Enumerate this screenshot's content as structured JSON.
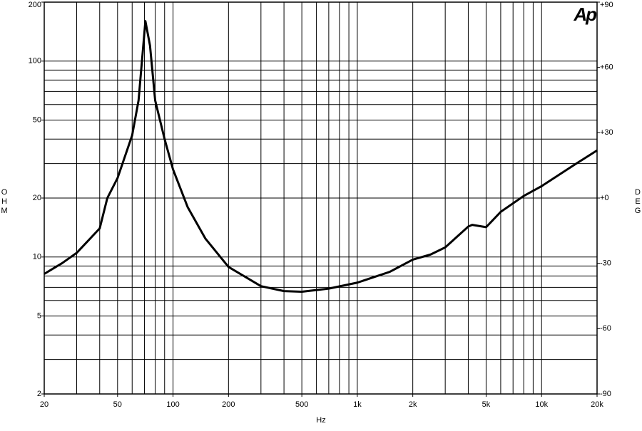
{
  "chart_data": {
    "type": "line",
    "logo": "Ap",
    "xlabel": "Hz",
    "ylabel": "OHM",
    "y2label": "DEG",
    "x": [
      20,
      25,
      30,
      40,
      44,
      50,
      60,
      65,
      70.8,
      75,
      80,
      90,
      100,
      120,
      150,
      200,
      300,
      400,
      500,
      700,
      1000,
      1500,
      2000,
      2500,
      3000,
      4000,
      4200,
      5000,
      6000,
      8000,
      10000,
      15000,
      20000
    ],
    "values": [
      8.2,
      9.3,
      10.5,
      14,
      20,
      25.3,
      41.8,
      63,
      160,
      120,
      63,
      40,
      28,
      18,
      12.4,
      8.9,
      7.1,
      6.7,
      6.65,
      6.9,
      7.4,
      8.4,
      9.7,
      10.3,
      11.2,
      14.3,
      14.6,
      14.2,
      17,
      20.5,
      23,
      29.5,
      35
    ],
    "color": "#000000",
    "xscale": "log",
    "yscale": "log",
    "xlim": [
      20,
      20000
    ],
    "ylim": [
      2,
      200
    ],
    "y2lim": [
      -90,
      90
    ],
    "xticks": [
      20,
      50,
      100,
      200,
      500,
      {
        "value": 1000,
        "label": "1k"
      },
      {
        "value": 2000,
        "label": "2k"
      },
      {
        "value": 5000,
        "label": "5k"
      },
      {
        "value": 10000,
        "label": "10k"
      },
      {
        "value": 20000,
        "label": "20k"
      }
    ],
    "yticks": [
      2,
      5,
      10,
      20,
      50,
      100,
      200
    ],
    "y2ticks": [
      {
        "value": 90,
        "label": "+90"
      },
      {
        "value": 60,
        "label": "+60"
      },
      {
        "value": 30,
        "label": "+30"
      },
      {
        "value": 0,
        "label": "+0"
      },
      -30,
      -60,
      -90
    ],
    "xgrid": [
      20,
      30,
      40,
      50,
      60,
      70,
      80,
      90,
      100,
      200,
      300,
      400,
      500,
      600,
      700,
      800,
      900,
      1000,
      2000,
      3000,
      4000,
      5000,
      6000,
      7000,
      8000,
      9000,
      10000,
      20000
    ],
    "ygrid": [
      2,
      3,
      4,
      5,
      6,
      7,
      8,
      9,
      10,
      20,
      30,
      40,
      50,
      60,
      70,
      80,
      90,
      100,
      200
    ],
    "grid": true
  }
}
